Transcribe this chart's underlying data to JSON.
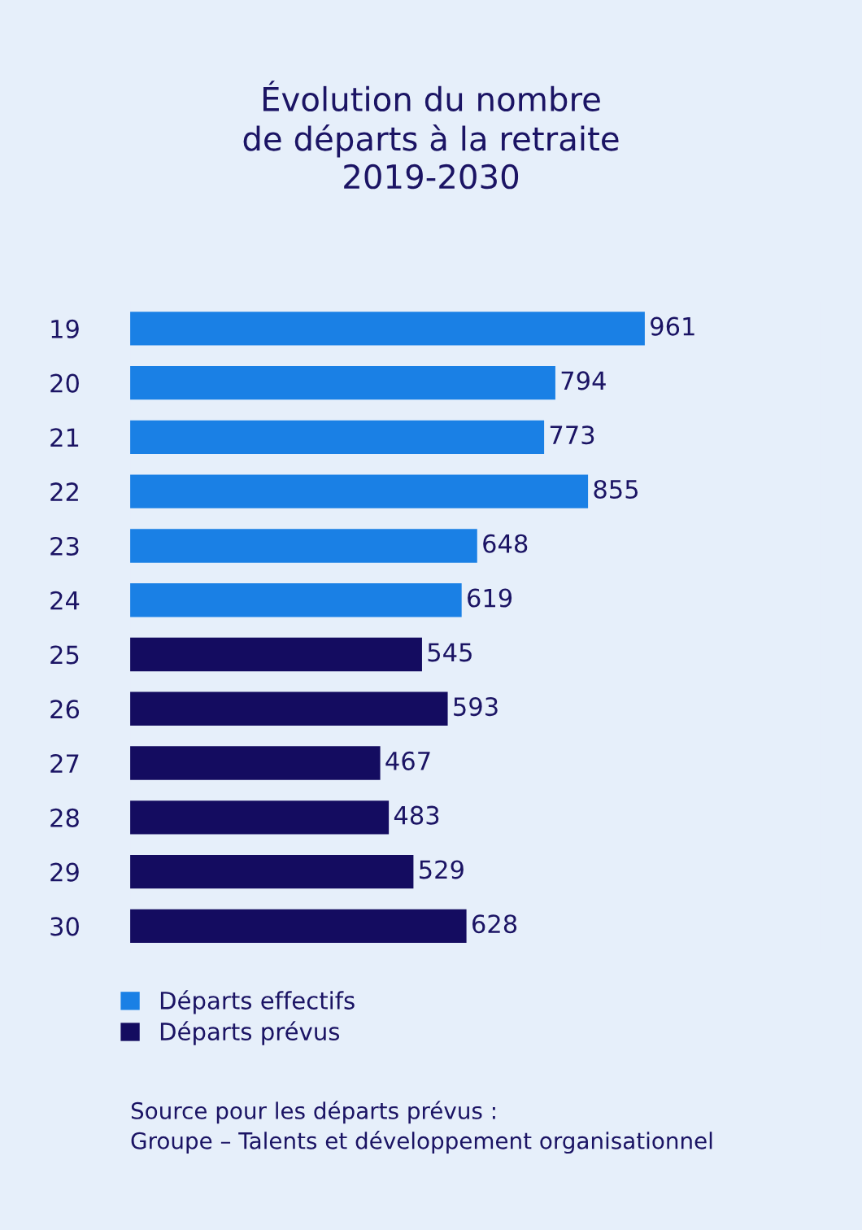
{
  "chart_data": {
    "type": "bar",
    "orientation": "horizontal",
    "stacked": true,
    "title": "Évolution du nombre\nde départs à la retraite\n2019-2030",
    "categories": [
      "19",
      "20",
      "21",
      "22",
      "23",
      "24",
      "25",
      "26",
      "27",
      "28",
      "29",
      "30"
    ],
    "series": [
      {
        "name": "Départs effectifs",
        "color": "#1a80e5",
        "values": [
          961,
          794,
          773,
          855,
          648,
          619,
          null,
          null,
          null,
          null,
          null,
          null
        ]
      },
      {
        "name": "Départs prévus",
        "color": "#140c60",
        "values": [
          null,
          null,
          null,
          null,
          null,
          null,
          545,
          593,
          467,
          483,
          529,
          628
        ]
      }
    ],
    "data_labels": true,
    "legend": "bottom left",
    "grid": false,
    "annotations": [
      "Source pour les départs prévus :\nGroupe – Talents et développement organisationnel"
    ]
  }
}
